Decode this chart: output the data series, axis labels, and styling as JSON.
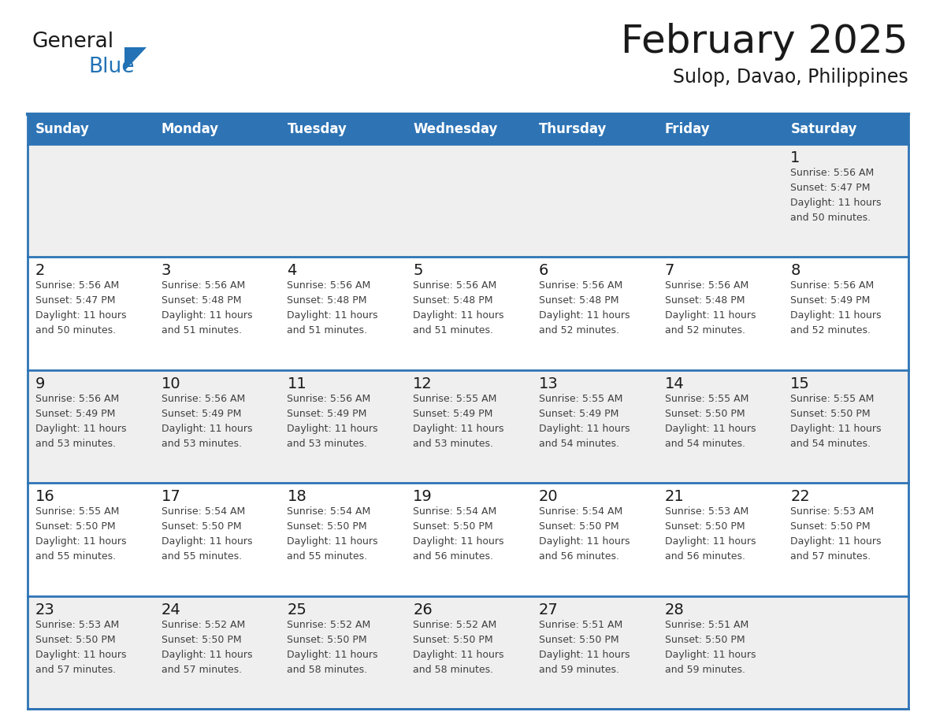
{
  "title": "February 2025",
  "subtitle": "Sulop, Davao, Philippines",
  "header_bg": "#2E74B5",
  "header_text_color": "#FFFFFF",
  "cell_bg_even": "#EFEFEF",
  "cell_bg_odd": "#FFFFFF",
  "border_color": "#2E74B5",
  "day_number_color": "#1a1a1a",
  "detail_text_color": "#404040",
  "days_of_week": [
    "Sunday",
    "Monday",
    "Tuesday",
    "Wednesday",
    "Thursday",
    "Friday",
    "Saturday"
  ],
  "weeks": [
    [
      {
        "day": null,
        "info": null
      },
      {
        "day": null,
        "info": null
      },
      {
        "day": null,
        "info": null
      },
      {
        "day": null,
        "info": null
      },
      {
        "day": null,
        "info": null
      },
      {
        "day": null,
        "info": null
      },
      {
        "day": 1,
        "info": "Sunrise: 5:56 AM\nSunset: 5:47 PM\nDaylight: 11 hours\nand 50 minutes."
      }
    ],
    [
      {
        "day": 2,
        "info": "Sunrise: 5:56 AM\nSunset: 5:47 PM\nDaylight: 11 hours\nand 50 minutes."
      },
      {
        "day": 3,
        "info": "Sunrise: 5:56 AM\nSunset: 5:48 PM\nDaylight: 11 hours\nand 51 minutes."
      },
      {
        "day": 4,
        "info": "Sunrise: 5:56 AM\nSunset: 5:48 PM\nDaylight: 11 hours\nand 51 minutes."
      },
      {
        "day": 5,
        "info": "Sunrise: 5:56 AM\nSunset: 5:48 PM\nDaylight: 11 hours\nand 51 minutes."
      },
      {
        "day": 6,
        "info": "Sunrise: 5:56 AM\nSunset: 5:48 PM\nDaylight: 11 hours\nand 52 minutes."
      },
      {
        "day": 7,
        "info": "Sunrise: 5:56 AM\nSunset: 5:48 PM\nDaylight: 11 hours\nand 52 minutes."
      },
      {
        "day": 8,
        "info": "Sunrise: 5:56 AM\nSunset: 5:49 PM\nDaylight: 11 hours\nand 52 minutes."
      }
    ],
    [
      {
        "day": 9,
        "info": "Sunrise: 5:56 AM\nSunset: 5:49 PM\nDaylight: 11 hours\nand 53 minutes."
      },
      {
        "day": 10,
        "info": "Sunrise: 5:56 AM\nSunset: 5:49 PM\nDaylight: 11 hours\nand 53 minutes."
      },
      {
        "day": 11,
        "info": "Sunrise: 5:56 AM\nSunset: 5:49 PM\nDaylight: 11 hours\nand 53 minutes."
      },
      {
        "day": 12,
        "info": "Sunrise: 5:55 AM\nSunset: 5:49 PM\nDaylight: 11 hours\nand 53 minutes."
      },
      {
        "day": 13,
        "info": "Sunrise: 5:55 AM\nSunset: 5:49 PM\nDaylight: 11 hours\nand 54 minutes."
      },
      {
        "day": 14,
        "info": "Sunrise: 5:55 AM\nSunset: 5:50 PM\nDaylight: 11 hours\nand 54 minutes."
      },
      {
        "day": 15,
        "info": "Sunrise: 5:55 AM\nSunset: 5:50 PM\nDaylight: 11 hours\nand 54 minutes."
      }
    ],
    [
      {
        "day": 16,
        "info": "Sunrise: 5:55 AM\nSunset: 5:50 PM\nDaylight: 11 hours\nand 55 minutes."
      },
      {
        "day": 17,
        "info": "Sunrise: 5:54 AM\nSunset: 5:50 PM\nDaylight: 11 hours\nand 55 minutes."
      },
      {
        "day": 18,
        "info": "Sunrise: 5:54 AM\nSunset: 5:50 PM\nDaylight: 11 hours\nand 55 minutes."
      },
      {
        "day": 19,
        "info": "Sunrise: 5:54 AM\nSunset: 5:50 PM\nDaylight: 11 hours\nand 56 minutes."
      },
      {
        "day": 20,
        "info": "Sunrise: 5:54 AM\nSunset: 5:50 PM\nDaylight: 11 hours\nand 56 minutes."
      },
      {
        "day": 21,
        "info": "Sunrise: 5:53 AM\nSunset: 5:50 PM\nDaylight: 11 hours\nand 56 minutes."
      },
      {
        "day": 22,
        "info": "Sunrise: 5:53 AM\nSunset: 5:50 PM\nDaylight: 11 hours\nand 57 minutes."
      }
    ],
    [
      {
        "day": 23,
        "info": "Sunrise: 5:53 AM\nSunset: 5:50 PM\nDaylight: 11 hours\nand 57 minutes."
      },
      {
        "day": 24,
        "info": "Sunrise: 5:52 AM\nSunset: 5:50 PM\nDaylight: 11 hours\nand 57 minutes."
      },
      {
        "day": 25,
        "info": "Sunrise: 5:52 AM\nSunset: 5:50 PM\nDaylight: 11 hours\nand 58 minutes."
      },
      {
        "day": 26,
        "info": "Sunrise: 5:52 AM\nSunset: 5:50 PM\nDaylight: 11 hours\nand 58 minutes."
      },
      {
        "day": 27,
        "info": "Sunrise: 5:51 AM\nSunset: 5:50 PM\nDaylight: 11 hours\nand 59 minutes."
      },
      {
        "day": 28,
        "info": "Sunrise: 5:51 AM\nSunset: 5:50 PM\nDaylight: 11 hours\nand 59 minutes."
      },
      {
        "day": null,
        "info": null
      }
    ]
  ],
  "logo_text1": "General",
  "logo_text2": "Blue",
  "logo_color1": "#1a1a1a",
  "logo_color2": "#2272B5",
  "logo_triangle_color": "#2272B5",
  "fig_width": 11.88,
  "fig_height": 9.18,
  "dpi": 100
}
